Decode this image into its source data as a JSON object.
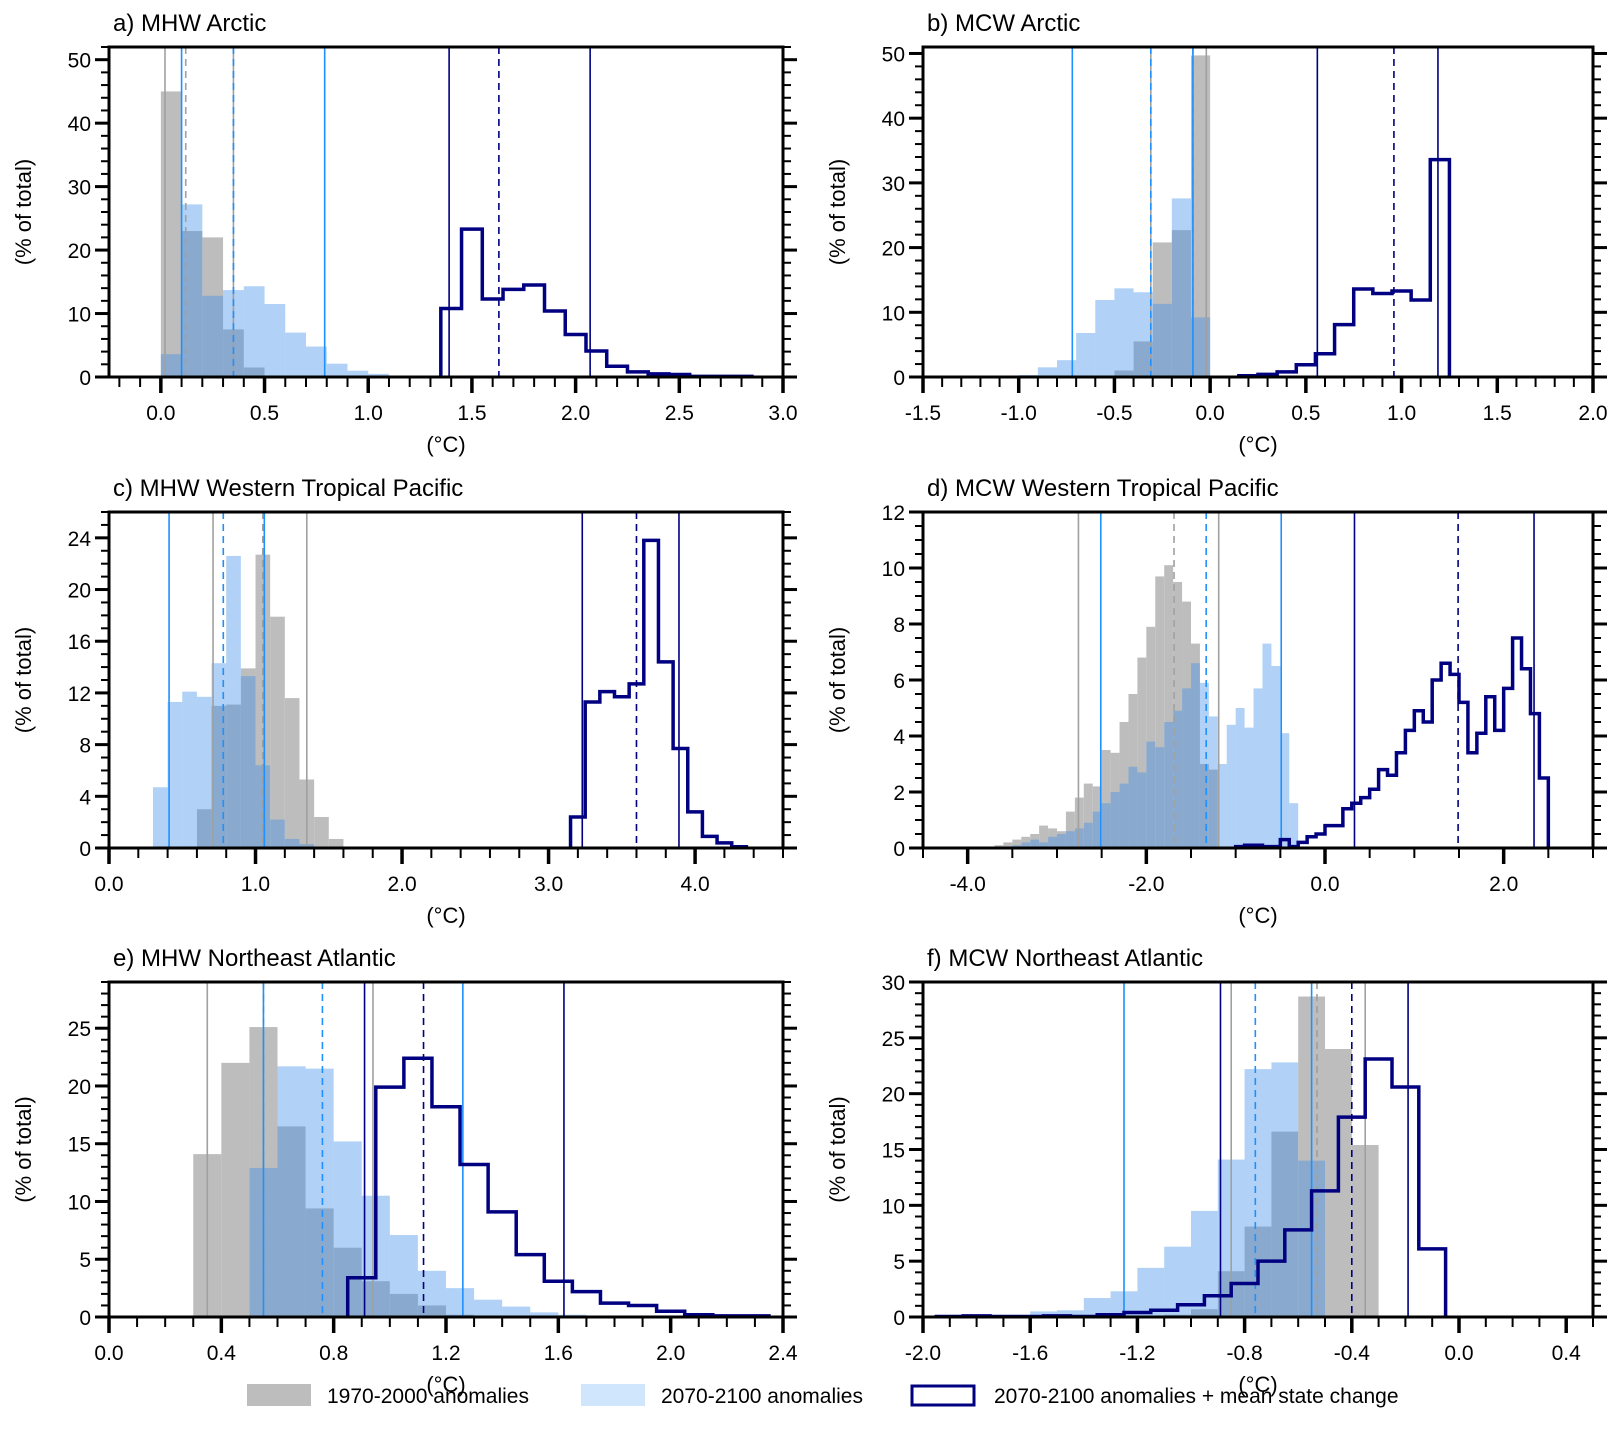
{
  "colors": {
    "period_1970_2000": "#bdbdbd",
    "period_2070_2100": "#b0d6fb",
    "overlap": "#7fa6cc",
    "mean_state_outline": "#000080",
    "line_1970_2000": "#a0a0a0",
    "line_2070_2100": "#1e90ff",
    "line_mean_state": "#000080"
  },
  "legend": {
    "items": [
      {
        "label": "1970-2000 anomalies",
        "kind": "fill-gray"
      },
      {
        "label": "2070-2100 anomalies",
        "kind": "fill-lightblue"
      },
      {
        "label": "2070-2100 anomalies + mean state change",
        "kind": "outline-navy"
      }
    ]
  },
  "chart_data": [
    {
      "id": "a",
      "type": "bar",
      "title": "a) MHW Arctic",
      "xlabel": "(°C)",
      "ylabel": "(% of total)",
      "xlim": [
        -0.25,
        3.0
      ],
      "ylim": [
        0,
        52
      ],
      "xticks": [
        0.0,
        0.5,
        1.0,
        1.5,
        2.0,
        2.5,
        3.0
      ],
      "xticklabels": [
        "0.0",
        "0.5",
        "1.0",
        "1.5",
        "2.0",
        "2.5",
        "3.0"
      ],
      "xminor": 0.1,
      "yticks": [
        0,
        10,
        20,
        30,
        40,
        50
      ],
      "yminor": 2,
      "series": [
        {
          "name": "1970-2000 anomalies",
          "style": "fill-gray",
          "bin_start": 0.0,
          "bin_width": 0.1,
          "values": [
            45.0,
            23.0,
            22.0,
            7.5,
            1.5,
            0.1
          ]
        },
        {
          "name": "2070-2100 anomalies",
          "style": "fill-lightblue",
          "bin_start": 0.0,
          "bin_width": 0.1,
          "values": [
            3.6,
            27.2,
            12.8,
            13.7,
            14.3,
            11.5,
            7.0,
            4.8,
            2.1,
            1.0,
            0.5,
            0.2
          ]
        },
        {
          "name": "2070-2100 anomalies + mean state change",
          "style": "outline-navy",
          "bin_start": 1.35,
          "bin_width": 0.1,
          "values": [
            10.8,
            23.3,
            12.3,
            13.8,
            14.5,
            10.4,
            6.7,
            4.1,
            1.7,
            0.8,
            0.5,
            0.4,
            0.1,
            0.1,
            0.1
          ]
        }
      ],
      "vlines": [
        {
          "x": 0.02,
          "series": "1970-2000 anomalies",
          "style": "solid"
        },
        {
          "x": 0.12,
          "series": "1970-2000 anomalies",
          "style": "dashed"
        },
        {
          "x": 0.35,
          "series": "1970-2000 anomalies",
          "style": "solid"
        },
        {
          "x": 0.1,
          "series": "2070-2100 anomalies",
          "style": "solid"
        },
        {
          "x": 0.35,
          "series": "2070-2100 anomalies",
          "style": "dashed"
        },
        {
          "x": 0.79,
          "series": "2070-2100 anomalies",
          "style": "solid"
        },
        {
          "x": 1.39,
          "series": "2070-2100 anomalies + mean state change",
          "style": "solid"
        },
        {
          "x": 1.63,
          "series": "2070-2100 anomalies + mean state change",
          "style": "dashed"
        },
        {
          "x": 2.07,
          "series": "2070-2100 anomalies + mean state change",
          "style": "solid"
        }
      ]
    },
    {
      "id": "b",
      "type": "bar",
      "title": "b) MCW Arctic",
      "xlabel": "(°C)",
      "ylabel": "(% of total)",
      "xlim": [
        -1.5,
        2.0
      ],
      "ylim": [
        0,
        51
      ],
      "xticks": [
        -1.5,
        -1.0,
        -0.5,
        0.0,
        0.5,
        1.0,
        1.5,
        2.0
      ],
      "xticklabels": [
        "-1.5",
        "-1.0",
        "-0.5",
        "0.0",
        "0.5",
        "1.0",
        "1.5",
        "2.0"
      ],
      "xminor": 0.1,
      "yticks": [
        0,
        10,
        20,
        30,
        40,
        50
      ],
      "yminor": 2,
      "series": [
        {
          "name": "1970-2000 anomalies",
          "style": "fill-gray",
          "bin_start": -0.5,
          "bin_width": 0.1,
          "values": [
            1.0,
            5.5,
            20.8,
            22.7,
            49.7
          ]
        },
        {
          "name": "2070-2100 anomalies",
          "style": "fill-lightblue",
          "bin_start": -1.3,
          "bin_width": 0.1,
          "values": [
            0.1,
            0.1,
            0.2,
            0.3,
            1.5,
            2.6,
            6.8,
            11.9,
            13.7,
            13.1,
            11.3,
            27.6,
            9.2
          ]
        },
        {
          "name": "2070-2100 anomalies + mean state change",
          "style": "outline-navy",
          "bin_start": 0.15,
          "bin_width": 0.1,
          "values": [
            0.2,
            0.4,
            0.8,
            1.9,
            3.6,
            8.1,
            13.6,
            12.9,
            13.3,
            11.9,
            33.6
          ]
        }
      ],
      "vlines": [
        {
          "x": -0.31,
          "series": "1970-2000 anomalies",
          "style": "solid"
        },
        {
          "x": -0.09,
          "series": "1970-2000 anomalies",
          "style": "dashed"
        },
        {
          "x": -0.02,
          "series": "1970-2000 anomalies",
          "style": "solid"
        },
        {
          "x": -0.72,
          "series": "2070-2100 anomalies",
          "style": "solid"
        },
        {
          "x": -0.31,
          "series": "2070-2100 anomalies",
          "style": "dashed"
        },
        {
          "x": -0.09,
          "series": "2070-2100 anomalies",
          "style": "solid"
        },
        {
          "x": 0.56,
          "series": "2070-2100 anomalies + mean state change",
          "style": "solid"
        },
        {
          "x": 0.96,
          "series": "2070-2100 anomalies + mean state change",
          "style": "dashed"
        },
        {
          "x": 1.19,
          "series": "2070-2100 anomalies + mean state change",
          "style": "solid"
        }
      ]
    },
    {
      "id": "c",
      "type": "bar",
      "title": "c) MHW Western Tropical Pacific",
      "xlabel": "(°C)",
      "ylabel": "(% of total)",
      "xlim": [
        0.0,
        4.6
      ],
      "ylim": [
        0,
        26
      ],
      "xticks": [
        0.0,
        1.0,
        2.0,
        3.0,
        4.0
      ],
      "xticklabels": [
        "0.0",
        "1.0",
        "2.0",
        "3.0",
        "4.0"
      ],
      "xminor": 0.2,
      "yticks": [
        0,
        4,
        8,
        12,
        16,
        20,
        24
      ],
      "yminor": 1,
      "series": [
        {
          "name": "1970-2000 anomalies",
          "style": "fill-gray",
          "bin_start": 0.6,
          "bin_width": 0.1,
          "values": [
            3.0,
            11.0,
            11.1,
            13.9,
            22.7,
            17.9,
            11.6,
            5.3,
            2.4,
            0.7
          ]
        },
        {
          "name": "2070-2100 anomalies",
          "style": "fill-lightblue",
          "bin_start": 0.3,
          "bin_width": 0.1,
          "values": [
            4.7,
            11.3,
            12.1,
            11.7,
            14.3,
            22.6,
            13.3,
            6.4,
            2.2,
            0.7,
            0.3
          ]
        },
        {
          "name": "2070-2100 anomalies + mean state change",
          "style": "outline-navy",
          "bin_start": 3.15,
          "bin_width": 0.1,
          "values": [
            2.4,
            11.3,
            12.1,
            11.7,
            12.7,
            23.8,
            14.4,
            7.7,
            2.8,
            0.9,
            0.4,
            0.1
          ]
        }
      ],
      "vlines": [
        {
          "x": 0.71,
          "series": "1970-2000 anomalies",
          "style": "solid"
        },
        {
          "x": 1.05,
          "series": "1970-2000 anomalies",
          "style": "dashed"
        },
        {
          "x": 1.35,
          "series": "1970-2000 anomalies",
          "style": "solid"
        },
        {
          "x": 0.41,
          "series": "2070-2100 anomalies",
          "style": "solid"
        },
        {
          "x": 0.78,
          "series": "2070-2100 anomalies",
          "style": "dashed"
        },
        {
          "x": 1.06,
          "series": "2070-2100 anomalies",
          "style": "solid"
        },
        {
          "x": 3.23,
          "series": "2070-2100 anomalies + mean state change",
          "style": "solid"
        },
        {
          "x": 3.6,
          "series": "2070-2100 anomalies + mean state change",
          "style": "dashed"
        },
        {
          "x": 3.89,
          "series": "2070-2100 anomalies + mean state change",
          "style": "solid"
        }
      ]
    },
    {
      "id": "d",
      "type": "bar",
      "title": "d) MCW Western Tropical Pacific",
      "xlabel": "(°C)",
      "ylabel": "(% of total)",
      "xlim": [
        -4.5,
        3.0
      ],
      "ylim": [
        0,
        12
      ],
      "xticks": [
        -4.0,
        -2.0,
        0.0,
        2.0
      ],
      "xticklabels": [
        "-4.0",
        "-2.0",
        "0.0",
        "2.0"
      ],
      "xminor": 0.5,
      "yticks": [
        0,
        2,
        4,
        6,
        8,
        10,
        12
      ],
      "yminor": 0.5,
      "series": [
        {
          "name": "1970-2000 anomalies",
          "style": "fill-gray",
          "bin_start": -3.7,
          "bin_width": 0.1,
          "values": [
            0.1,
            0.2,
            0.3,
            0.4,
            0.5,
            0.8,
            0.7,
            0.6,
            1.3,
            1.8,
            2.3,
            2.2,
            3.5,
            3.4,
            4.5,
            5.5,
            6.8,
            7.9,
            9.7,
            10.1,
            9.5,
            8.8,
            7.3,
            3.0,
            2.8
          ]
        },
        {
          "name": "2070-2100 anomalies",
          "style": "fill-lightblue",
          "bin_start": -3.5,
          "bin_width": 0.1,
          "values": [
            0.1,
            0.2,
            0.3,
            0.2,
            0.4,
            0.5,
            0.6,
            0.7,
            0.9,
            1.3,
            1.6,
            2.0,
            2.3,
            2.9,
            2.7,
            3.8,
            3.6,
            4.5,
            4.9,
            5.7,
            6.6,
            5.9,
            4.7,
            3.0,
            4.4,
            5.0,
            4.3,
            5.7,
            7.3,
            6.5,
            4.1,
            1.6
          ]
        },
        {
          "name": "2070-2100 anomalies + mean state change",
          "style": "outline-navy",
          "bin_start": -1.0,
          "bin_width": 0.1,
          "values": [
            0.05,
            0.1,
            0.1,
            0.05,
            0.05,
            0.3,
            0.05,
            0.2,
            0.4,
            0.5,
            0.8,
            0.8,
            1.4,
            1.6,
            1.8,
            2.1,
            2.8,
            2.6,
            3.4,
            4.2,
            4.9,
            4.5,
            6.0,
            6.6,
            6.2,
            5.2,
            3.4,
            4.1,
            5.4,
            4.2,
            5.7,
            7.5,
            6.4,
            4.8,
            2.5
          ]
        }
      ],
      "vlines": [
        {
          "x": -2.76,
          "series": "1970-2000 anomalies",
          "style": "solid"
        },
        {
          "x": -1.69,
          "series": "1970-2000 anomalies",
          "style": "dashed"
        },
        {
          "x": -1.19,
          "series": "1970-2000 anomalies",
          "style": "solid"
        },
        {
          "x": -2.51,
          "series": "2070-2100 anomalies",
          "style": "solid"
        },
        {
          "x": -1.33,
          "series": "2070-2100 anomalies",
          "style": "dashed"
        },
        {
          "x": -0.49,
          "series": "2070-2100 anomalies",
          "style": "solid"
        },
        {
          "x": 0.33,
          "series": "2070-2100 anomalies + mean state change",
          "style": "solid"
        },
        {
          "x": 1.49,
          "series": "2070-2100 anomalies + mean state change",
          "style": "dashed"
        },
        {
          "x": 2.34,
          "series": "2070-2100 anomalies + mean state change",
          "style": "solid"
        }
      ]
    },
    {
      "id": "e",
      "type": "bar",
      "title": "e) MHW Northeast Atlantic",
      "xlabel": "(°C)",
      "ylabel": "(% of total)",
      "xlim": [
        0.0,
        2.4
      ],
      "ylim": [
        0,
        29
      ],
      "xticks": [
        0.0,
        0.4,
        0.8,
        1.2,
        1.6,
        2.0,
        2.4
      ],
      "xticklabels": [
        "0.0",
        "0.4",
        "0.8",
        "1.2",
        "1.6",
        "2.0",
        "2.4"
      ],
      "xminor": 0.1,
      "yticks": [
        0,
        5,
        10,
        15,
        20,
        25
      ],
      "yminor": 1,
      "series": [
        {
          "name": "1970-2000 anomalies",
          "style": "fill-gray",
          "bin_start": 0.3,
          "bin_width": 0.1,
          "values": [
            14.1,
            22.0,
            25.1,
            16.5,
            9.4,
            6.0,
            3.1,
            2.0,
            1.0,
            0.2
          ]
        },
        {
          "name": "2070-2100 anomalies",
          "style": "fill-lightblue",
          "bin_start": 0.5,
          "bin_width": 0.1,
          "values": [
            12.9,
            21.7,
            21.5,
            15.2,
            10.5,
            7.1,
            4.0,
            2.5,
            1.5,
            0.9,
            0.4,
            0.2
          ]
        },
        {
          "name": "2070-2100 anomalies + mean state change",
          "style": "outline-navy",
          "bin_start": 0.85,
          "bin_width": 0.1,
          "values": [
            3.4,
            19.9,
            22.4,
            18.2,
            13.2,
            9.1,
            5.4,
            3.1,
            2.2,
            1.2,
            1.0,
            0.5,
            0.2,
            0.1,
            0.1
          ]
        }
      ],
      "vlines": [
        {
          "x": 0.35,
          "series": "1970-2000 anomalies",
          "style": "solid"
        },
        {
          "x": 0.55,
          "series": "1970-2000 anomalies",
          "style": "dashed"
        },
        {
          "x": 0.94,
          "series": "1970-2000 anomalies",
          "style": "solid"
        },
        {
          "x": 0.55,
          "series": "2070-2100 anomalies",
          "style": "solid"
        },
        {
          "x": 0.76,
          "series": "2070-2100 anomalies",
          "style": "dashed"
        },
        {
          "x": 1.26,
          "series": "2070-2100 anomalies",
          "style": "solid"
        },
        {
          "x": 0.91,
          "series": "2070-2100 anomalies + mean state change",
          "style": "solid"
        },
        {
          "x": 1.12,
          "series": "2070-2100 anomalies + mean state change",
          "style": "dashed"
        },
        {
          "x": 1.62,
          "series": "2070-2100 anomalies + mean state change",
          "style": "solid"
        }
      ]
    },
    {
      "id": "f",
      "type": "bar",
      "title": "f) MCW Northeast Atlantic",
      "xlabel": "(°C)",
      "ylabel": "(% of total)",
      "xlim": [
        -2.0,
        0.5
      ],
      "ylim": [
        0,
        30
      ],
      "xticks": [
        -2.0,
        -1.6,
        -1.2,
        -0.8,
        -0.4,
        0.0,
        0.4
      ],
      "xticklabels": [
        "-2.0",
        "-1.6",
        "-1.2",
        "-0.8",
        "-0.4",
        "0.0",
        "0.4"
      ],
      "xminor": 0.1,
      "yticks": [
        0,
        5,
        10,
        15,
        20,
        25,
        30
      ],
      "yminor": 1,
      "series": [
        {
          "name": "1970-2000 anomalies",
          "style": "fill-gray",
          "bin_start": -1.1,
          "bin_width": 0.1,
          "values": [
            0.2,
            0.7,
            4.1,
            8.1,
            16.6,
            28.7,
            24.0,
            15.4
          ]
        },
        {
          "name": "2070-2100 anomalies",
          "style": "fill-lightblue",
          "bin_start": -1.9,
          "bin_width": 0.1,
          "values": [
            0.2,
            0.1,
            0.1,
            0.5,
            0.6,
            1.7,
            2.3,
            4.4,
            6.3,
            9.5,
            14.1,
            22.2,
            22.8,
            14.0
          ]
        },
        {
          "name": "2070-2100 anomalies + mean state change",
          "style": "outline-navy",
          "bin_start": -1.95,
          "bin_width": 0.1,
          "values": [
            0.05,
            0.1,
            0.05,
            0.05,
            0.1,
            0.05,
            0.2,
            0.4,
            0.6,
            1.1,
            1.9,
            3.0,
            5.0,
            7.8,
            11.3,
            17.9,
            23.1,
            20.6,
            6.1
          ]
        }
      ],
      "vlines": [
        {
          "x": -0.85,
          "series": "1970-2000 anomalies",
          "style": "solid"
        },
        {
          "x": -0.53,
          "series": "1970-2000 anomalies",
          "style": "dashed"
        },
        {
          "x": -0.35,
          "series": "1970-2000 anomalies",
          "style": "solid"
        },
        {
          "x": -1.25,
          "series": "2070-2100 anomalies",
          "style": "solid"
        },
        {
          "x": -0.76,
          "series": "2070-2100 anomalies",
          "style": "dashed"
        },
        {
          "x": -0.55,
          "series": "2070-2100 anomalies",
          "style": "solid"
        },
        {
          "x": -0.89,
          "series": "2070-2100 anomalies + mean state change",
          "style": "solid"
        },
        {
          "x": -0.4,
          "series": "2070-2100 anomalies + mean state change",
          "style": "dashed"
        },
        {
          "x": -0.19,
          "series": "2070-2100 anomalies + mean state change",
          "style": "solid"
        }
      ]
    }
  ]
}
